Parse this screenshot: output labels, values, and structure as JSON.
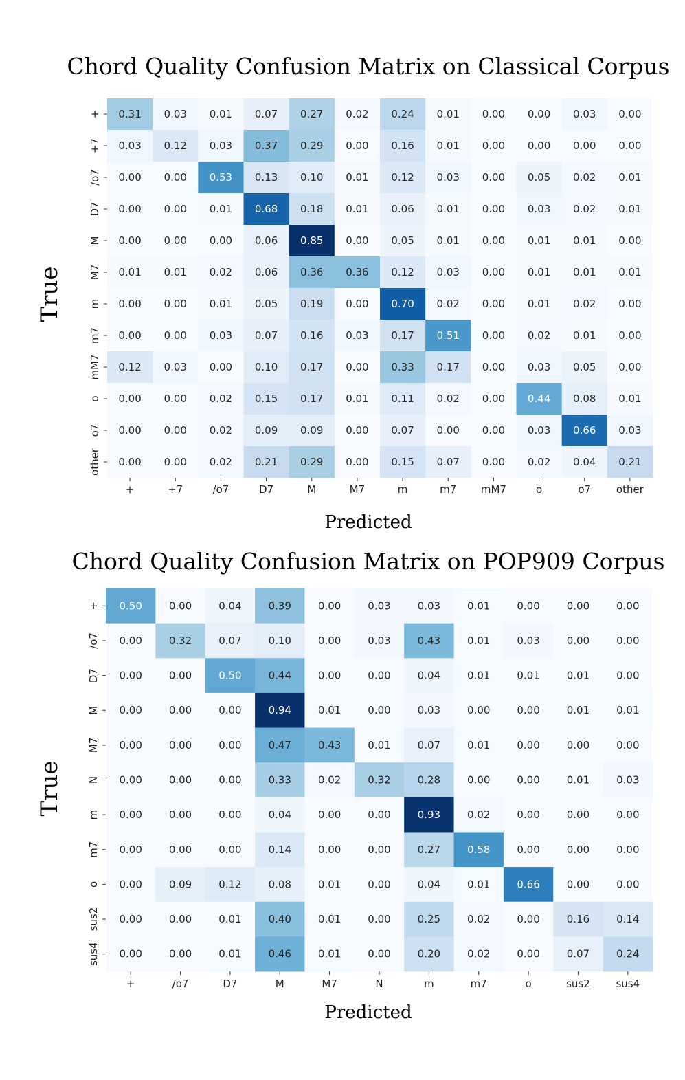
{
  "chart_data": [
    {
      "type": "heatmap",
      "title": "Chord Quality Confusion Matrix on Classical Corpus",
      "xlabel": "Predicted",
      "ylabel": "True",
      "x_categories": [
        "+",
        "+7",
        "/o7",
        "D7",
        "M",
        "M7",
        "m",
        "m7",
        "mM7",
        "o",
        "o7",
        "other"
      ],
      "y_categories": [
        "+",
        "+7",
        "/o7",
        "D7",
        "M",
        "M7",
        "m",
        "m7",
        "mM7",
        "o",
        "o7",
        "other"
      ],
      "values": [
        [
          0.31,
          0.03,
          0.01,
          0.07,
          0.27,
          0.02,
          0.24,
          0.01,
          0.0,
          0.0,
          0.03,
          0.0
        ],
        [
          0.03,
          0.12,
          0.03,
          0.37,
          0.29,
          0.0,
          0.16,
          0.01,
          0.0,
          0.0,
          0.0,
          0.0
        ],
        [
          0.0,
          0.0,
          0.53,
          0.13,
          0.1,
          0.01,
          0.12,
          0.03,
          0.0,
          0.05,
          0.02,
          0.01
        ],
        [
          0.0,
          0.0,
          0.01,
          0.68,
          0.18,
          0.01,
          0.06,
          0.01,
          0.0,
          0.03,
          0.02,
          0.01
        ],
        [
          0.0,
          0.0,
          0.0,
          0.06,
          0.85,
          0.0,
          0.05,
          0.01,
          0.0,
          0.01,
          0.01,
          0.0
        ],
        [
          0.01,
          0.01,
          0.02,
          0.06,
          0.36,
          0.36,
          0.12,
          0.03,
          0.0,
          0.01,
          0.01,
          0.01
        ],
        [
          0.0,
          0.0,
          0.01,
          0.05,
          0.19,
          0.0,
          0.7,
          0.02,
          0.0,
          0.01,
          0.02,
          0.0
        ],
        [
          0.0,
          0.0,
          0.03,
          0.07,
          0.16,
          0.03,
          0.17,
          0.51,
          0.0,
          0.02,
          0.01,
          0.0
        ],
        [
          0.12,
          0.03,
          0.0,
          0.1,
          0.17,
          0.0,
          0.33,
          0.17,
          0.0,
          0.03,
          0.05,
          0.0
        ],
        [
          0.0,
          0.0,
          0.02,
          0.15,
          0.17,
          0.01,
          0.11,
          0.02,
          0.0,
          0.44,
          0.08,
          0.01
        ],
        [
          0.0,
          0.0,
          0.02,
          0.09,
          0.09,
          0.0,
          0.07,
          0.0,
          0.0,
          0.03,
          0.66,
          0.03
        ],
        [
          0.0,
          0.0,
          0.02,
          0.21,
          0.29,
          0.0,
          0.15,
          0.07,
          0.0,
          0.02,
          0.04,
          0.21
        ]
      ],
      "colormap": "Blues",
      "vmin": 0,
      "vmax": 1
    },
    {
      "type": "heatmap",
      "title": "Chord Quality Confusion Matrix on POP909 Corpus",
      "xlabel": "Predicted",
      "ylabel": "True",
      "x_categories": [
        "+",
        "/o7",
        "D7",
        "M",
        "M7",
        "N",
        "m",
        "m7",
        "o",
        "sus2",
        "sus4"
      ],
      "y_categories": [
        "+",
        "/o7",
        "D7",
        "M",
        "M7",
        "N",
        "m",
        "m7",
        "o",
        "sus2",
        "sus4"
      ],
      "values": [
        [
          0.5,
          0.0,
          0.04,
          0.39,
          0.0,
          0.03,
          0.03,
          0.01,
          0.0,
          0.0,
          0.0
        ],
        [
          0.0,
          0.32,
          0.07,
          0.1,
          0.0,
          0.03,
          0.43,
          0.01,
          0.03,
          0.0,
          0.0
        ],
        [
          0.0,
          0.0,
          0.5,
          0.44,
          0.0,
          0.0,
          0.04,
          0.01,
          0.01,
          0.01,
          0.0
        ],
        [
          0.0,
          0.0,
          0.0,
          0.94,
          0.01,
          0.0,
          0.03,
          0.0,
          0.0,
          0.01,
          0.01
        ],
        [
          0.0,
          0.0,
          0.0,
          0.47,
          0.43,
          0.01,
          0.07,
          0.01,
          0.0,
          0.0,
          0.0
        ],
        [
          0.0,
          0.0,
          0.0,
          0.33,
          0.02,
          0.32,
          0.28,
          0.0,
          0.0,
          0.01,
          0.03
        ],
        [
          0.0,
          0.0,
          0.0,
          0.04,
          0.0,
          0.0,
          0.93,
          0.02,
          0.0,
          0.0,
          0.0
        ],
        [
          0.0,
          0.0,
          0.0,
          0.14,
          0.0,
          0.0,
          0.27,
          0.58,
          0.0,
          0.0,
          0.0
        ],
        [
          0.0,
          0.09,
          0.12,
          0.08,
          0.01,
          0.0,
          0.04,
          0.01,
          0.66,
          0.0,
          0.0
        ],
        [
          0.0,
          0.0,
          0.01,
          0.4,
          0.01,
          0.0,
          0.25,
          0.02,
          0.0,
          0.16,
          0.14
        ],
        [
          0.0,
          0.0,
          0.01,
          0.46,
          0.01,
          0.0,
          0.2,
          0.02,
          0.0,
          0.07,
          0.24
        ]
      ],
      "colormap": "Blues",
      "vmin": 0,
      "vmax": 1
    }
  ]
}
